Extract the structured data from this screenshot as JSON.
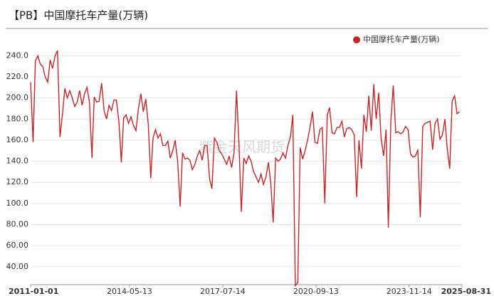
{
  "chart_data": {
    "type": "line",
    "title": "【PB】中国摩托车产量(万辆)",
    "watermark": "紫金天风期货",
    "x": [
      "2011-01",
      "2011-02",
      "2011-03",
      "2011-04",
      "2011-05",
      "2011-06",
      "2011-07",
      "2011-08",
      "2011-09",
      "2011-10",
      "2011-11",
      "2011-12",
      "2012-01",
      "2012-02",
      "2012-03",
      "2012-04",
      "2012-05",
      "2012-06",
      "2012-07",
      "2012-08",
      "2012-09",
      "2012-10",
      "2012-11",
      "2012-12",
      "2013-01",
      "2013-02",
      "2013-03",
      "2013-04",
      "2013-05",
      "2013-06",
      "2013-07",
      "2013-08",
      "2013-09",
      "2013-10",
      "2013-11",
      "2013-12",
      "2014-01",
      "2014-02",
      "2014-03",
      "2014-04",
      "2014-05",
      "2014-06",
      "2014-07",
      "2014-08",
      "2014-09",
      "2014-10",
      "2014-11",
      "2014-12",
      "2015-01",
      "2015-02",
      "2015-03",
      "2015-04",
      "2015-05",
      "2015-06",
      "2015-07",
      "2015-08",
      "2015-09",
      "2015-10",
      "2015-11",
      "2015-12",
      "2016-01",
      "2016-02",
      "2016-03",
      "2016-04",
      "2016-05",
      "2016-06",
      "2016-07",
      "2016-08",
      "2016-09",
      "2016-10",
      "2016-11",
      "2016-12",
      "2017-01",
      "2017-02",
      "2017-03",
      "2017-04",
      "2017-05",
      "2017-06",
      "2017-07",
      "2017-08",
      "2017-09",
      "2017-10",
      "2017-11",
      "2017-12",
      "2018-01",
      "2018-02",
      "2018-03",
      "2018-04",
      "2018-05",
      "2018-06",
      "2018-07",
      "2018-08",
      "2018-09",
      "2018-10",
      "2018-11",
      "2018-12",
      "2019-01",
      "2019-02",
      "2019-03",
      "2019-04",
      "2019-05",
      "2019-06",
      "2019-07",
      "2019-08",
      "2019-09",
      "2019-10",
      "2019-11",
      "2019-12",
      "2020-01",
      "2020-02",
      "2020-03",
      "2020-04",
      "2020-05",
      "2020-06",
      "2020-07",
      "2020-08",
      "2020-09",
      "2020-10",
      "2020-11",
      "2020-12",
      "2021-01",
      "2021-02",
      "2021-03",
      "2021-04",
      "2021-05",
      "2021-06",
      "2021-07",
      "2021-08",
      "2021-09",
      "2021-10",
      "2021-11",
      "2021-12",
      "2022-01",
      "2022-02",
      "2022-03",
      "2022-04",
      "2022-05",
      "2022-06",
      "2022-07",
      "2022-08",
      "2022-09",
      "2022-10",
      "2022-11",
      "2022-12",
      "2023-01",
      "2023-02",
      "2023-03",
      "2023-04",
      "2023-05",
      "2023-06",
      "2023-07",
      "2023-08",
      "2023-09",
      "2023-10",
      "2023-11",
      "2023-12",
      "2024-01",
      "2024-02",
      "2024-03",
      "2024-04",
      "2024-05",
      "2024-06",
      "2024-07",
      "2024-08",
      "2024-09",
      "2024-10",
      "2024-11",
      "2024-12",
      "2025-01",
      "2025-02",
      "2025-03",
      "2025-04",
      "2025-05",
      "2025-06",
      "2025-07",
      "2025-08"
    ],
    "series": [
      {
        "name": "中国摩托车产量(万辆)",
        "color": "#c0282b",
        "values": [
          215,
          158,
          235,
          240,
          232,
          230,
          220,
          215,
          236,
          228,
          240,
          245,
          163,
          185,
          209,
          200,
          207,
          200,
          192,
          196,
          207,
          193,
          204,
          210,
          196,
          143,
          201,
          196,
          197,
          214,
          188,
          180,
          193,
          188,
          198,
          198,
          178,
          139,
          181,
          184,
          176,
          182,
          174,
          169,
          190,
          204,
          187,
          199,
          175,
          124,
          162,
          170,
          162,
          166,
          155,
          155,
          159,
          143,
          150,
          160,
          140,
          97,
          148,
          142,
          143,
          141,
          132,
          137,
          145,
          150,
          141,
          155,
          155,
          123,
          114,
          162,
          158,
          150,
          147,
          142,
          137,
          145,
          134,
          148,
          207,
          155,
          92,
          143,
          138,
          145,
          140,
          130,
          125,
          120,
          128,
          118,
          125,
          139,
          120,
          82,
          143,
          140,
          142,
          148,
          143,
          155,
          163,
          184,
          22,
          25,
          153,
          142,
          150,
          160,
          172,
          187,
          158,
          157,
          170,
          172,
          100,
          184,
          191,
          167,
          166,
          172,
          172,
          178,
          163,
          171,
          172,
          170,
          165,
          106,
          160,
          133,
          184,
          168,
          202,
          169,
          213,
          180,
          205,
          162,
          145,
          170,
          77,
          178,
          212,
          167,
          168,
          166,
          168,
          173,
          170,
          147,
          144,
          145,
          151,
          87,
          173,
          176,
          177,
          178,
          151,
          176,
          180,
          161,
          165,
          180,
          152,
          133,
          197,
          202,
          185,
          187
        ]
      }
    ],
    "xlim": [
      "2011-01-01",
      "2025-08-31"
    ],
    "xticks": [
      "2011-01-01",
      "2014-05-13",
      "2017-07-14",
      "2020-09-13",
      "2023-11-14",
      "2025-08-31"
    ],
    "ylim": [
      23,
      247
    ],
    "yticks": [
      {
        "value": 40,
        "label": "40.00"
      },
      {
        "value": 60,
        "label": "60.00"
      },
      {
        "value": 80,
        "label": "80.00"
      },
      {
        "value": 100,
        "label": "100.0"
      },
      {
        "value": 120,
        "label": "120.0"
      },
      {
        "value": 140,
        "label": "140.0"
      },
      {
        "value": 160,
        "label": "160.0"
      },
      {
        "value": 180,
        "label": "180.0"
      },
      {
        "value": 200,
        "label": "200.0"
      },
      {
        "value": 220,
        "label": "220.0"
      },
      {
        "value": 240,
        "label": "240.0"
      }
    ],
    "grid": true
  }
}
